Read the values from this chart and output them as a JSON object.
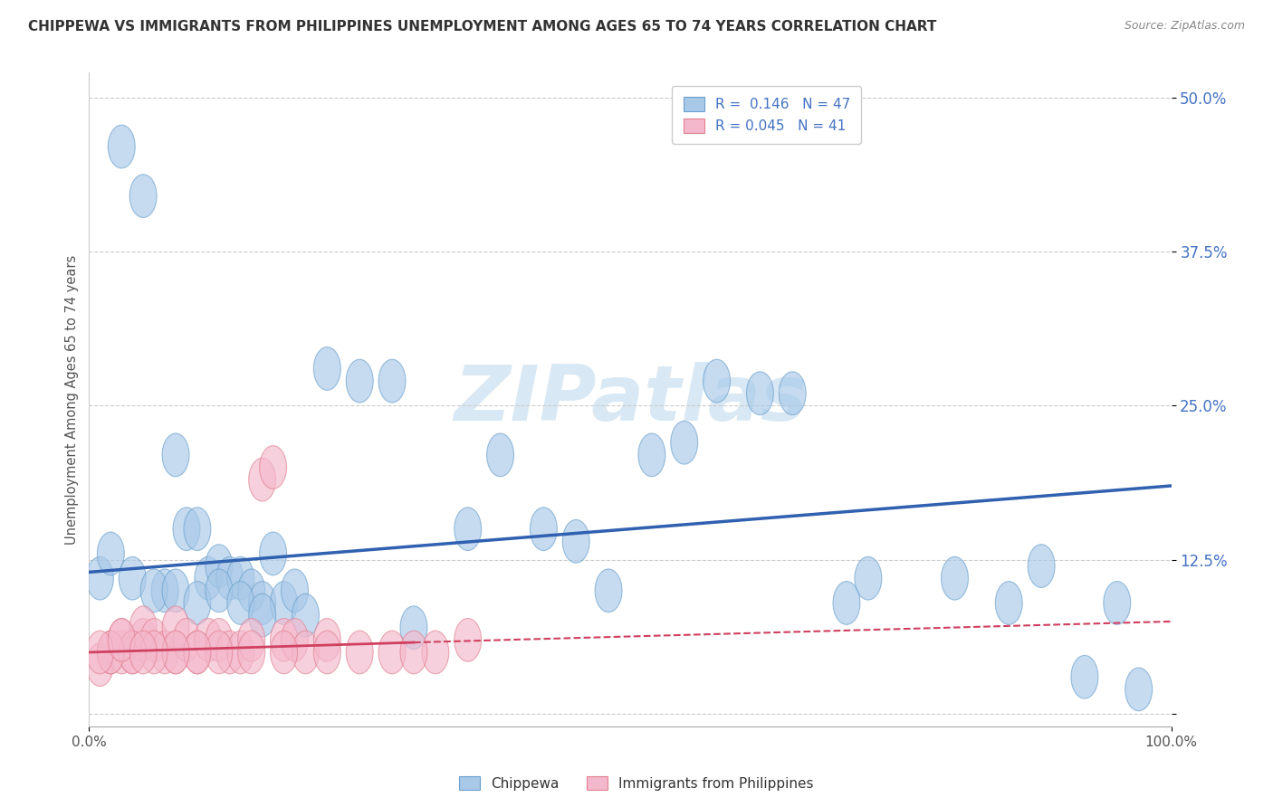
{
  "title": "CHIPPEWA VS IMMIGRANTS FROM PHILIPPINES UNEMPLOYMENT AMONG AGES 65 TO 74 YEARS CORRELATION CHART",
  "source": "Source: ZipAtlas.com",
  "ylabel": "Unemployment Among Ages 65 to 74 years",
  "xlim": [
    0,
    100
  ],
  "ylim": [
    -1,
    52
  ],
  "yticks": [
    0,
    12.5,
    25.0,
    37.5,
    50.0
  ],
  "xticks": [
    0,
    100
  ],
  "xticklabels": [
    "0.0%",
    "100.0%"
  ],
  "yticklabels": [
    "",
    "12.5%",
    "25.0%",
    "37.5%",
    "50.0%"
  ],
  "chippewa_x": [
    3,
    5,
    7,
    8,
    9,
    10,
    11,
    12,
    13,
    14,
    15,
    16,
    17,
    18,
    19,
    20,
    22,
    25,
    28,
    30,
    35,
    38,
    42,
    45,
    48,
    52,
    55,
    58,
    62,
    65,
    70,
    72,
    80,
    85,
    88,
    92,
    95,
    97,
    1,
    2,
    4,
    6,
    8,
    10,
    12,
    14,
    16
  ],
  "chippewa_y": [
    46,
    42,
    10,
    21,
    15,
    15,
    11,
    12,
    11,
    11,
    10,
    9,
    13,
    9,
    10,
    8,
    28,
    27,
    27,
    7,
    15,
    21,
    15,
    14,
    10,
    21,
    22,
    27,
    26,
    26,
    9,
    11,
    11,
    9,
    12,
    3,
    9,
    2,
    11,
    13,
    11,
    10,
    10,
    9,
    10,
    9,
    8
  ],
  "philippines_x": [
    1,
    2,
    3,
    3,
    4,
    5,
    5,
    6,
    7,
    8,
    8,
    9,
    10,
    11,
    12,
    13,
    14,
    15,
    16,
    17,
    18,
    19,
    20,
    22,
    25,
    28,
    32,
    35,
    30,
    22,
    18,
    15,
    12,
    10,
    8,
    6,
    4,
    2,
    1,
    3,
    5
  ],
  "philippines_y": [
    4,
    5,
    5,
    6,
    5,
    6,
    7,
    6,
    5,
    5,
    7,
    6,
    5,
    6,
    6,
    5,
    5,
    6,
    19,
    20,
    6,
    6,
    5,
    6,
    5,
    5,
    5,
    6,
    5,
    5,
    5,
    5,
    5,
    5,
    5,
    5,
    5,
    5,
    5,
    6,
    5
  ],
  "blue_color": "#a8c8e8",
  "blue_edge_color": "#6aa0cc",
  "pink_color": "#f4b8cc",
  "pink_edge_color": "#e08090",
  "blue_line_color": "#3060b0",
  "pink_line_color": "#d04060",
  "watermark_color": "#d8e8f4",
  "background_color": "#ffffff",
  "grid_color": "#cccccc",
  "title_color": "#333333",
  "source_color": "#888888",
  "ylabel_color": "#555555",
  "tick_color": "#4472c4",
  "blue_trend_x0": 0,
  "blue_trend_y0": 11.5,
  "blue_trend_x1": 100,
  "blue_trend_y1": 18.5,
  "pink_trend_x0": 0,
  "pink_trend_y0": 5.0,
  "pink_trend_x1": 30,
  "pink_trend_y1": 5.8,
  "pink_dash_x0": 30,
  "pink_dash_y0": 5.8,
  "pink_dash_x1": 100,
  "pink_dash_y1": 7.5
}
